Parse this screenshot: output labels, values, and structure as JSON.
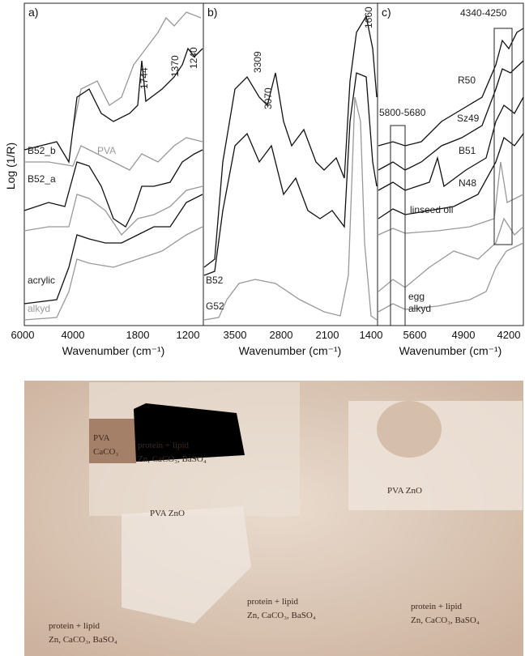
{
  "figure": {
    "y_axis_label": "Log (1/R)",
    "panels": [
      {
        "label": "a)",
        "x_axis_label": "Wavenumber (cm⁻¹)",
        "x_tick_labels": [
          "6000",
          "4000",
          "1800",
          "1200"
        ],
        "peak_labels": [
          "1744",
          "1370",
          "1240"
        ],
        "curve_labels": [
          "B52_b",
          "PVA",
          "B52_a",
          "acrylic",
          "alkyd"
        ]
      },
      {
        "label": "b)",
        "x_axis_label": "Wavenumber (cm⁻¹)",
        "x_tick_labels": [
          "3500",
          "2800",
          "2100",
          "1400"
        ],
        "peak_labels": [
          "3309",
          "3070",
          "1660"
        ],
        "curve_labels": [
          "B52",
          "G52"
        ]
      },
      {
        "label": "c)",
        "x_axis_label": "Wavenumber (cm⁻¹)",
        "x_tick_labels": [
          "5600",
          "4900",
          "4200"
        ],
        "peak_labels": [
          "5800-5680",
          "4340-4250"
        ],
        "curve_labels": [
          "R50",
          "Sz49",
          "B51",
          "N48",
          "linseed oil",
          "egg",
          "alkyd"
        ]
      }
    ],
    "photo": {
      "labels": [
        {
          "lines": [
            "protein + lipid",
            "Zn, CaCO₃, BaSO₄"
          ]
        },
        {
          "lines": [
            "PVA",
            "CaCO₃"
          ]
        },
        {
          "lines": [
            "PVA ZnO"
          ]
        },
        {
          "lines": [
            "PVA ZnO"
          ]
        },
        {
          "lines": [
            "protein + lipid",
            "Zn, CaCO₃, BaSO₄"
          ]
        },
        {
          "lines": [
            "protein + lipid",
            "Zn, CaCO₃, BaSO₄"
          ]
        },
        {
          "lines": [
            "protein + lipid",
            "Zn, CaCO₃, BaSO₄"
          ]
        }
      ]
    }
  }
}
